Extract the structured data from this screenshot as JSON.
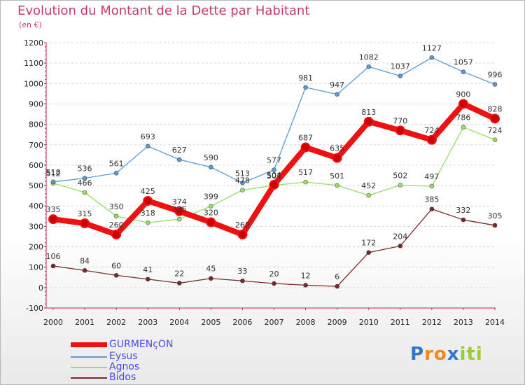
{
  "chart_data": {
    "type": "line",
    "title": "Evolution du Montant de la Dette par Habitant",
    "subtitle": "(en €)",
    "categories": [
      "2000",
      "2001",
      "2002",
      "2003",
      "2004",
      "2005",
      "2006",
      "2007",
      "2008",
      "2009",
      "2010",
      "2011",
      "2012",
      "2013",
      "2014"
    ],
    "ylim": [
      -100,
      1200
    ],
    "yticks": [
      "-100",
      "0",
      "100",
      "200",
      "300",
      "400",
      "500",
      "600",
      "700",
      "800",
      "900",
      "1000",
      "1100",
      "1200"
    ],
    "grid": "horizontal dashed",
    "legend_position": "bottom-left",
    "series": [
      {
        "name": "GURMENçON",
        "color": "#ee1111",
        "values": [
          335,
          315,
          260,
          425,
          374,
          320,
          260,
          504,
          687,
          635,
          813,
          770,
          724,
          900,
          828
        ]
      },
      {
        "name": "Eysus",
        "color": "#5a9bd4",
        "values": [
          518,
          536,
          561,
          693,
          627,
          590,
          513,
          577,
          981,
          947,
          1082,
          1037,
          1127,
          1057,
          996
        ]
      },
      {
        "name": "Agnos",
        "color": "#99dd66",
        "values": [
          512,
          466,
          350,
          318,
          335,
          399,
          478,
          501,
          517,
          501,
          452,
          502,
          497,
          786,
          724
        ]
      },
      {
        "name": "Bidos",
        "color": "#7a2a2a",
        "values": [
          106,
          84,
          60,
          41,
          22,
          45,
          33,
          20,
          12,
          6,
          172,
          204,
          385,
          332,
          305
        ]
      }
    ]
  },
  "logo": {
    "text": "Proxiti",
    "letters": [
      "P",
      "r",
      "o",
      "x",
      "i",
      "t",
      "i"
    ],
    "colors": [
      "#3377cc",
      "#ee8822",
      "#ee8822",
      "#3377cc",
      "#99cc33",
      "#99cc33",
      "#99cc33"
    ]
  }
}
